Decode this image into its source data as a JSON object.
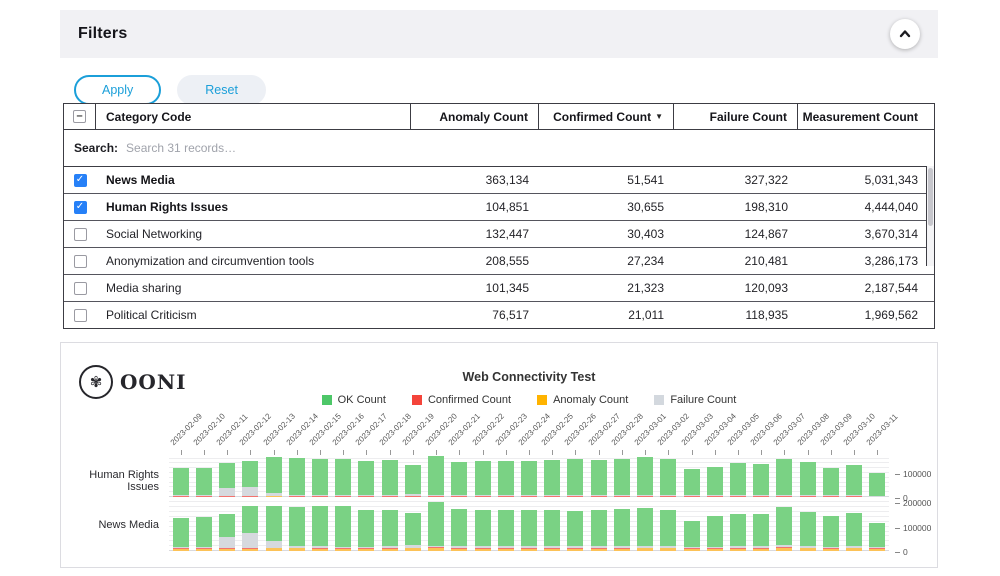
{
  "filters_panel": {
    "title": "Filters",
    "apply_label": "Apply",
    "reset_label": "Reset",
    "icons": {
      "collapse": "chevron-up",
      "sort_desc": "▼",
      "indeterminate": "–",
      "check": "✓"
    },
    "table": {
      "columns": [
        "Category Code",
        "Anomaly Count",
        "Confirmed Count",
        "Failure Count",
        "Measurement Count"
      ],
      "sorted_by": "Confirmed Count",
      "search_label": "Search:",
      "search_placeholder": "Search 31 records…",
      "rows": [
        {
          "checked": true,
          "category": "News Media",
          "anomaly": "363,134",
          "confirmed": "51,541",
          "failure": "327,322",
          "measurement": "5,031,343"
        },
        {
          "checked": true,
          "category": "Human Rights Issues",
          "anomaly": "104,851",
          "confirmed": "30,655",
          "failure": "198,310",
          "measurement": "4,444,040"
        },
        {
          "checked": false,
          "category": "Social Networking",
          "anomaly": "132,447",
          "confirmed": "30,403",
          "failure": "124,867",
          "measurement": "3,670,314"
        },
        {
          "checked": false,
          "category": "Anonymization and circumvention tools",
          "anomaly": "208,555",
          "confirmed": "27,234",
          "failure": "210,481",
          "measurement": "3,286,173"
        },
        {
          "checked": false,
          "category": "Media sharing",
          "anomaly": "101,345",
          "confirmed": "21,323",
          "failure": "120,093",
          "measurement": "2,187,544"
        },
        {
          "checked": false,
          "category": "Political Criticism",
          "anomaly": "76,517",
          "confirmed": "21,011",
          "failure": "118,935",
          "measurement": "1,969,562"
        }
      ]
    }
  },
  "chart_panel": {
    "logo_text": "OONI",
    "logo_glyph": "✾"
  },
  "chart_data": {
    "type": "bar",
    "stacked": true,
    "title": "Web Connectivity Test",
    "legend_position": "top-center",
    "grid": true,
    "legend": [
      {
        "key": "ok",
        "label": "OK Count",
        "color": "#4dc768"
      },
      {
        "key": "confirmed",
        "label": "Confirmed Count",
        "color": "#f4443a"
      },
      {
        "key": "anomaly",
        "label": "Anomaly Count",
        "color": "#ffb300"
      },
      {
        "key": "failure",
        "label": "Failure Count",
        "color": "#d3d8de"
      }
    ],
    "bar_colors": {
      "ok": "#7ad284",
      "confirmed": "#f3736e",
      "anomaly": "#fcc257",
      "failure": "#d6d9de"
    },
    "series_order_bottom_to_top": [
      "anomaly",
      "confirmed",
      "failure",
      "ok"
    ],
    "x": [
      "2023-02-09",
      "2023-02-10",
      "2023-02-11",
      "2023-02-12",
      "2023-02-13",
      "2023-02-14",
      "2023-02-15",
      "2023-02-16",
      "2023-02-17",
      "2023-02-18",
      "2023-02-19",
      "2023-02-20",
      "2023-02-21",
      "2023-02-22",
      "2023-02-23",
      "2023-02-24",
      "2023-02-25",
      "2023-02-26",
      "2023-02-27",
      "2023-02-28",
      "2023-03-01",
      "2023-03-02",
      "2023-03-03",
      "2023-03-04",
      "2023-03-05",
      "2023-03-06",
      "2023-03-07",
      "2023-03-08",
      "2023-03-09",
      "2023-03-10",
      "2023-03-11"
    ],
    "facets": [
      {
        "name": "Human Rights Issues",
        "ylim": [
          0,
          175000
        ],
        "yticks": [
          100000,
          0
        ],
        "series": {
          "ok": [
            112900,
            113700,
            101600,
            108500,
            150600,
            154400,
            152100,
            151750,
            144850,
            146750,
            120350,
            161100,
            138100,
            141250,
            144100,
            142250,
            147350,
            149250,
            147350,
            149250,
            156500,
            150100,
            109350,
            117100,
            132350,
            131250,
            151350,
            138100,
            113100,
            126350,
            93900
          ],
          "confirmed": [
            1100,
            1100,
            1000,
            1000,
            1200,
            1000,
            1000,
            950,
            950,
            950,
            1050,
            1100,
            1000,
            950,
            1000,
            950,
            950,
            950,
            950,
            950,
            1000,
            1000,
            850,
            900,
            950,
            950,
            1050,
            1000,
            900,
            950,
            800
          ],
          "anomaly": [
            3500,
            3600,
            3400,
            3500,
            4200,
            3600,
            3400,
            3300,
            3200,
            3300,
            3600,
            3800,
            3400,
            3300,
            3400,
            3300,
            3200,
            3300,
            3200,
            3300,
            3500,
            3400,
            2800,
            3000,
            3200,
            3300,
            3600,
            3400,
            3000,
            3200,
            2600
          ],
          "failure": [
            2500,
            2600,
            34000,
            37000,
            12000,
            4000,
            3500,
            3000,
            3000,
            3000,
            8000,
            4000,
            3500,
            3500,
            3500,
            3500,
            3500,
            3500,
            3500,
            3500,
            4000,
            3500,
            3000,
            3000,
            3500,
            3500,
            4000,
            3500,
            3000,
            3500,
            2700
          ]
        }
      },
      {
        "name": "News Media",
        "ylim": [
          0,
          205000
        ],
        "yticks": [
          200000,
          100000,
          0
        ],
        "series": {
          "ok": [
            117800,
            119800,
            92900,
            110400,
            145600,
            158300,
            166800,
            164900,
            149900,
            149400,
            128700,
            178100,
            152800,
            149400,
            150800,
            149400,
            149400,
            145900,
            151400,
            152900,
            156800,
            149800,
            108600,
            124500,
            131400,
            132900,
            157200,
            141800,
            125000,
            135400,
            99700
          ],
          "confirmed": [
            1700,
            1700,
            1600,
            1600,
            1900,
            1700,
            1700,
            1600,
            1600,
            1600,
            1800,
            1900,
            1700,
            1600,
            1700,
            1600,
            1600,
            1600,
            1600,
            1600,
            1700,
            1700,
            1400,
            1500,
            1600,
            1600,
            1800,
            1700,
            1500,
            1600,
            1300
          ],
          "anomaly": [
            11000,
            11500,
            10500,
            11000,
            12500,
            12000,
            11500,
            11000,
            11000,
            11500,
            12500,
            13000,
            11500,
            11000,
            11500,
            11000,
            11000,
            11500,
            11000,
            11500,
            12500,
            12000,
            10000,
            10500,
            11000,
            11500,
            13500,
            12000,
            11000,
            12000,
            9500
          ],
          "failure": [
            4500,
            5000,
            45000,
            60000,
            25000,
            8000,
            6000,
            5500,
            5500,
            5500,
            12000,
            7000,
            6000,
            6000,
            6000,
            6000,
            6000,
            6000,
            6000,
            6000,
            7000,
            6500,
            5000,
            5500,
            6000,
            6000,
            7500,
            6500,
            5500,
            6000,
            4500
          ]
        }
      }
    ]
  }
}
